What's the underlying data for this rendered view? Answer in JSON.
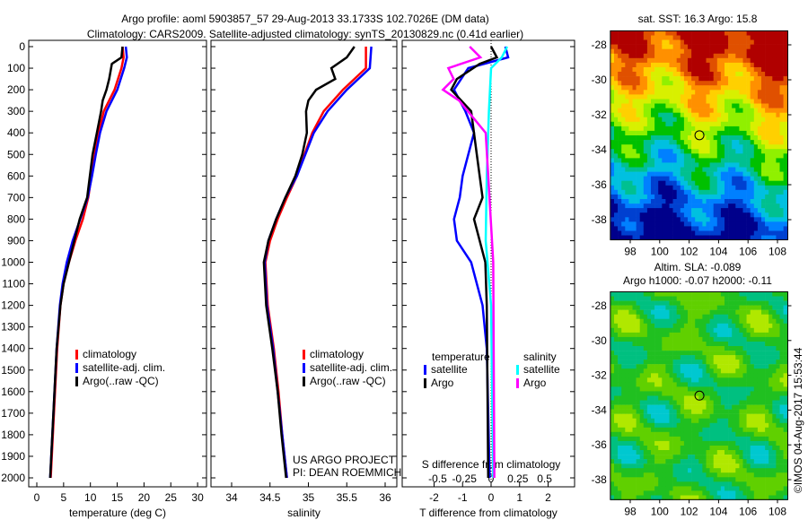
{
  "title_line1": "Argo profile: aoml 5903857_57 29-Aug-2013 33.1733S 102.7026E (DM data)",
  "title_line2": "Climatology: CARS2009. Satellite-adjusted climatology: synTS_20130829.nc (0.41d earlier)",
  "credit": "US ARGO PROJECT",
  "pi": "PI: DEAN ROEMMICH",
  "copyright": "©IMOS 04-Aug-2017 15:53:44",
  "colors": {
    "climatology": "#ff0000",
    "satellite": "#0000ff",
    "argo": "#000000",
    "sal_satellite": "#00ffff",
    "sal_argo": "#ff00ff"
  },
  "chart_data": [
    {
      "type": "line",
      "name": "temperature",
      "xlabel": "temperature (deg C)",
      "xlim": [
        -1,
        31
      ],
      "ylim": [
        2050,
        0
      ],
      "xticks": [
        0,
        5,
        10,
        15,
        20,
        25,
        30
      ],
      "yticks": [
        0,
        100,
        200,
        300,
        400,
        500,
        600,
        700,
        800,
        900,
        1000,
        1100,
        1200,
        1300,
        1400,
        1500,
        1600,
        1700,
        1800,
        1900,
        2000
      ],
      "legend": [
        "climatology",
        "satellite-adj. clim.",
        "Argo(..raw -QC)"
      ],
      "series": [
        {
          "name": "climatology",
          "color": "#ff0000",
          "depth": [
            0,
            50,
            100,
            200,
            300,
            400,
            500,
            600,
            700,
            800,
            900,
            1000,
            1100,
            1200,
            1400,
            1600,
            1800,
            2000
          ],
          "values": [
            16,
            16.2,
            15.8,
            14.5,
            12.5,
            11.5,
            10.8,
            10.2,
            9.6,
            8.6,
            7.2,
            6,
            5,
            4.4,
            3.8,
            3.4,
            3,
            2.6
          ]
        },
        {
          "name": "satellite-adj. clim.",
          "color": "#0000ff",
          "depth": [
            0,
            50,
            100,
            200,
            300,
            400,
            500,
            600,
            700,
            800,
            900,
            1000,
            1100,
            1200,
            1400,
            1600,
            1800,
            2000
          ],
          "values": [
            16.6,
            16.8,
            16.3,
            15,
            13,
            11.8,
            11,
            10.3,
            9.5,
            8.1,
            6.7,
            5.6,
            4.8,
            4.3,
            3.7,
            3.3,
            2.9,
            2.5
          ]
        },
        {
          "name": "Argo(..raw -QC)",
          "color": "#000000",
          "depth": [
            0,
            50,
            80,
            150,
            200,
            250,
            300,
            400,
            500,
            600,
            700,
            800,
            900,
            1000,
            1100,
            1200,
            1400,
            1600,
            1800,
            2000
          ],
          "values": [
            16,
            15.8,
            14,
            13.5,
            13,
            12.3,
            12,
            11.2,
            10.4,
            9.9,
            9.4,
            8,
            7,
            6,
            5,
            4.4,
            3.7,
            3.3,
            2.9,
            2.5
          ]
        }
      ]
    },
    {
      "type": "line",
      "name": "salinity",
      "xlabel": "salinity",
      "xlim": [
        33.73,
        36.1
      ],
      "ylim": [
        2050,
        0
      ],
      "xticks": [
        34,
        34.5,
        35,
        35.5,
        36
      ],
      "xticklabels": [
        "34",
        "34.5",
        "35",
        "35.5",
        "36"
      ],
      "legend": [
        "climatology",
        "satellite-adj. clim.",
        "Argo(..raw -QC)"
      ],
      "series": [
        {
          "name": "climatology",
          "color": "#ff0000",
          "depth": [
            0,
            100,
            200,
            300,
            400,
            500,
            600,
            700,
            800,
            900,
            1000,
            1200,
            1400,
            1600,
            1800,
            2000
          ],
          "values": [
            35.75,
            35.75,
            35.45,
            35.2,
            35.05,
            34.95,
            34.85,
            34.72,
            34.6,
            34.5,
            34.44,
            34.47,
            34.55,
            34.61,
            34.66,
            34.72
          ]
        },
        {
          "name": "satellite-adj. clim.",
          "color": "#0000ff",
          "depth": [
            0,
            100,
            200,
            300,
            400,
            500,
            600,
            700,
            800,
            900,
            1000,
            1200,
            1400,
            1600,
            1800,
            2000
          ],
          "values": [
            35.82,
            35.8,
            35.5,
            35.25,
            35.07,
            34.96,
            34.85,
            34.7,
            34.58,
            34.48,
            34.43,
            34.46,
            34.54,
            34.6,
            34.66,
            34.72
          ]
        },
        {
          "name": "Argo(..raw -QC)",
          "color": "#000000",
          "depth": [
            0,
            50,
            100,
            150,
            200,
            250,
            300,
            400,
            500,
            600,
            700,
            800,
            900,
            1000,
            1200,
            1400,
            1600,
            1800,
            2000
          ],
          "values": [
            35.6,
            35.5,
            35.3,
            35.35,
            35.1,
            35,
            34.97,
            34.98,
            34.92,
            34.83,
            34.7,
            34.58,
            34.48,
            34.42,
            34.45,
            34.53,
            34.6,
            34.65,
            34.71
          ]
        }
      ]
    },
    {
      "type": "line",
      "name": "difference",
      "xlabel": "T difference from climatology",
      "x2label": "S difference from climatology",
      "xlim": [
        -3,
        3
      ],
      "ylim": [
        2050,
        0
      ],
      "xticks": [
        -2,
        -1,
        0,
        1,
        2
      ],
      "x2ticks": [
        -0.5,
        -0.25,
        0,
        0.25,
        0.5
      ],
      "x2ticklabels": [
        "-0.5",
        "-0.25",
        "0",
        "0.25",
        "0.5"
      ],
      "legend_titles": [
        "temperature",
        "salinity"
      ],
      "legend": [
        "satellite",
        "Argo",
        "satellite",
        "Argo"
      ],
      "series": [
        {
          "name": "T satellite",
          "color": "#0000ff",
          "unit": "T",
          "depth": [
            0,
            50,
            100,
            200,
            300,
            400,
            500,
            600,
            700,
            800,
            900,
            1000,
            1200,
            1400,
            2000
          ],
          "values": [
            0.5,
            0.6,
            -0.8,
            -1.3,
            -0.9,
            -0.6,
            -0.8,
            -1.0,
            -1.1,
            -1.3,
            -1.2,
            -0.7,
            -0.3,
            -0.15,
            -0.05
          ]
        },
        {
          "name": "T Argo",
          "color": "#000000",
          "unit": "T",
          "depth": [
            0,
            50,
            80,
            150,
            200,
            300,
            500,
            700,
            800,
            900,
            1000,
            1200,
            2000
          ],
          "values": [
            0,
            0.2,
            -0.4,
            -1.2,
            -1.4,
            -0.7,
            -0.5,
            -0.3,
            -0.6,
            -0.4,
            -0.2,
            -0.15,
            -0.1
          ]
        },
        {
          "name": "S satellite",
          "color": "#00ffff",
          "unit": "S",
          "depth": [
            0,
            50,
            100,
            300,
            600,
            900,
            1200,
            2000
          ],
          "values": [
            0.15,
            0.1,
            0,
            -0.02,
            -0.04,
            -0.05,
            0,
            0.02
          ]
        },
        {
          "name": "S Argo",
          "color": "#ff00ff",
          "unit": "S",
          "depth": [
            0,
            50,
            100,
            150,
            200,
            250,
            400,
            1000,
            2000
          ],
          "values": [
            -0.2,
            -0.1,
            -0.4,
            -0.35,
            -0.45,
            -0.3,
            -0.05,
            0.02,
            0.03
          ]
        }
      ]
    },
    {
      "type": "heatmap",
      "name": "sst-map",
      "title": "sat. SST: 16.3 Argo: 15.8",
      "xticks": [
        98,
        100,
        102,
        104,
        106,
        108
      ],
      "yticks": [
        -28,
        -30,
        -32,
        -34,
        -36,
        -38
      ],
      "marker": [
        102.7,
        -33.17
      ]
    },
    {
      "type": "heatmap",
      "name": "sla-map",
      "title1": "Altim. SLA: -0.089",
      "title2": "Argo h1000: -0.07 h2000: -0.11",
      "xticks": [
        98,
        100,
        102,
        104,
        106,
        108
      ],
      "yticks": [
        -28,
        -30,
        -32,
        -34,
        -36,
        -38
      ],
      "marker": [
        102.7,
        -33.17
      ]
    }
  ]
}
